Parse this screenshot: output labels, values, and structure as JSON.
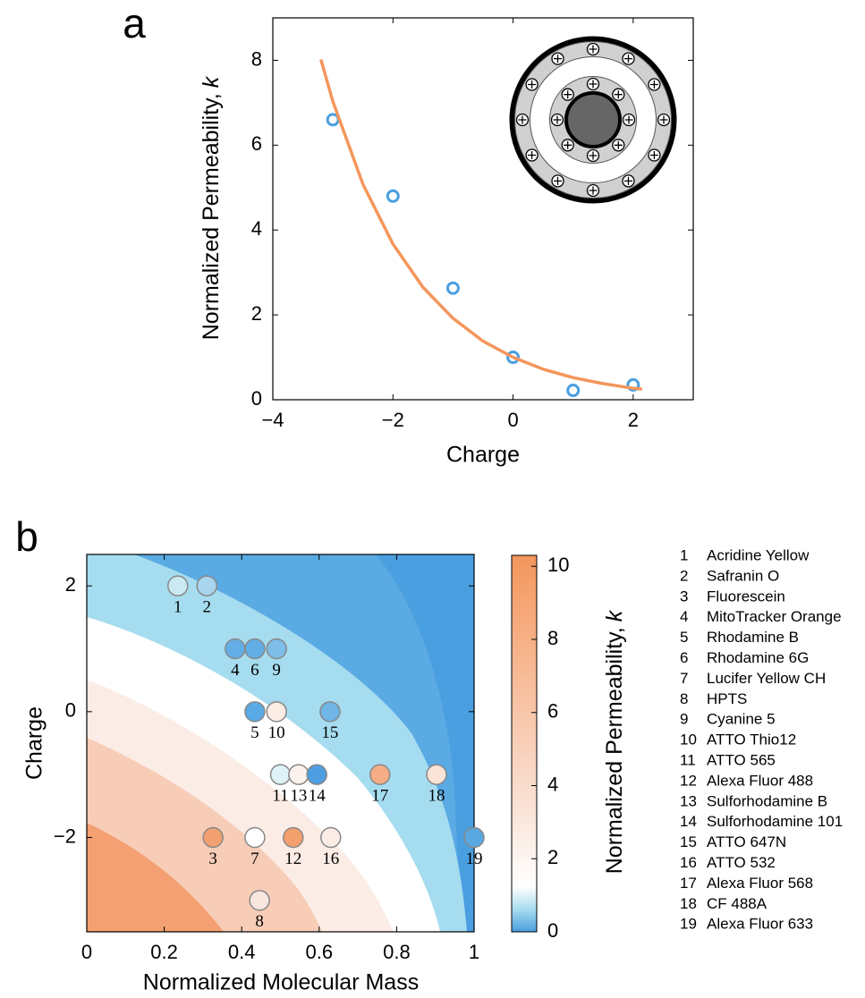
{
  "chart_data": [
    {
      "type": "scatter",
      "panel_label": "a",
      "xlabel": "Charge",
      "ylabel": "Normalized Permeability,",
      "ylabel_symbol": "k",
      "xlim": [
        -4,
        3
      ],
      "ylim": [
        0,
        9
      ],
      "xticks": [
        {
          "value": -4,
          "label": "−4"
        },
        {
          "value": -2,
          "label": "−2"
        },
        0,
        2
      ],
      "yticks": [
        0,
        2,
        4,
        6,
        8
      ],
      "series": [
        {
          "type": "scatter",
          "color": "#4a9fe0",
          "x": [
            -3,
            -2,
            -1,
            0,
            1,
            2
          ],
          "values": [
            6.6,
            4.8,
            2.63,
            1.0,
            0.22,
            0.35
          ]
        },
        {
          "type": "line",
          "color": "#f4965c",
          "x": [
            -3.2,
            -3,
            -2.5,
            -2,
            -1.5,
            -1,
            -0.5,
            0,
            0.5,
            1,
            1.5,
            2,
            2.15
          ],
          "values": [
            8.02,
            7.03,
            5.08,
            3.67,
            2.65,
            1.92,
            1.38,
            1.0,
            0.72,
            0.52,
            0.38,
            0.27,
            0.25
          ]
        }
      ]
    },
    {
      "type": "scatter",
      "panel_label": "b",
      "xlabel": "Normalized Molecular Mass",
      "ylabel": "Charge",
      "xlim": [
        0,
        1
      ],
      "ylim": [
        -3.5,
        2.5
      ],
      "xticks": [
        0,
        0.2,
        0.4,
        0.6,
        0.8,
        1
      ],
      "yticks": [
        {
          "value": -2,
          "label": "−2"
        },
        0,
        2
      ],
      "point_labels": [
        "1",
        "2",
        "3",
        "4",
        "5",
        "6",
        "7",
        "8",
        "9",
        "10",
        "11",
        "12",
        "13",
        "14",
        "15",
        "16",
        "17",
        "18",
        "19"
      ],
      "names": [
        "Acridine Yellow",
        "Safranin O",
        "Fluorescein",
        "MitoTracker Orange",
        "Rhodamine B",
        "Rhodamine 6G",
        "Lucifer Yellow CH",
        "HPTS",
        "Cyanine 5",
        "ATTO Thio12",
        "ATTO 565",
        "Alexa Fluor 488",
        "Sulforhodamine B",
        "Sulforhodamine 101",
        "ATTO 647N",
        "ATTO 532",
        "Alexa Fluor 568",
        "CF 488A",
        "Alexa Fluor 633"
      ],
      "x": [
        0.235,
        0.31,
        0.326,
        0.383,
        0.434,
        0.434,
        0.434,
        0.446,
        0.49,
        0.49,
        0.5,
        0.533,
        0.547,
        0.594,
        0.628,
        0.63,
        0.757,
        0.903,
        1.0
      ],
      "values": [
        2,
        2,
        -2,
        1,
        0,
        1,
        -2,
        -3,
        1,
        0,
        -1,
        -2,
        -1,
        -1,
        0,
        -2,
        -1,
        -1,
        -2
      ],
      "colors": [
        "#cbe9f3",
        "#a9d6ee",
        "#f2a070",
        "#63aee6",
        "#5aaae6",
        "#63aee6",
        "#ffffff",
        "#f6e6de",
        "#7dbde8",
        "#fbece4",
        "#dff2f8",
        "#f3a06e",
        "#fdf3ee",
        "#4d9fe1",
        "#6fb5e6",
        "#fbede6",
        "#f4ad85",
        "#fae3d7",
        "#5aa8e2"
      ],
      "colorbar": {
        "label": "Normalized Permeability,",
        "label_symbol": "k",
        "lim": [
          0,
          10.3
        ],
        "ticks": [
          0,
          2,
          4,
          6,
          8,
          10
        ]
      }
    }
  ]
}
